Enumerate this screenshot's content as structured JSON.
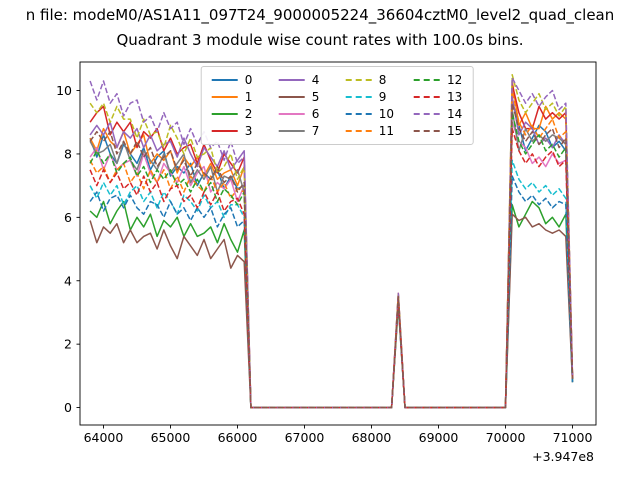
{
  "chart_data": {
    "type": "line",
    "title_line1": "n file: modeM0/AS1A11_097T24_9000005224_36604cztM0_level2_quad_clean",
    "title_line2": "Quadrant 3 module wise count rates with 100.0s bins.",
    "x_offset_label": "+3.947e8",
    "xlabel": "",
    "ylabel": "",
    "xlim": [
      63650,
      71350
    ],
    "ylim": [
      -0.55,
      10.9
    ],
    "x_ticks": [
      64000,
      65000,
      66000,
      67000,
      68000,
      69000,
      70000,
      71000
    ],
    "y_ticks": [
      0,
      2,
      4,
      6,
      8,
      10
    ],
    "grid": false,
    "legend": {
      "ncol": 4,
      "position": "upper-center"
    },
    "x": [
      63800,
      63900,
      64000,
      64100,
      64200,
      64300,
      64400,
      64500,
      64600,
      64700,
      64800,
      64900,
      65000,
      65100,
      65200,
      65300,
      65400,
      65500,
      65600,
      65700,
      65800,
      65900,
      66000,
      66100,
      66200,
      66300,
      66400,
      66500,
      66600,
      66700,
      66800,
      66900,
      67000,
      67100,
      67200,
      67300,
      67400,
      67500,
      67600,
      67700,
      67800,
      67900,
      68000,
      68100,
      68200,
      68300,
      68400,
      68500,
      68600,
      68700,
      68800,
      68900,
      69000,
      69100,
      69200,
      69300,
      69400,
      69500,
      69600,
      69700,
      69800,
      69900,
      70000,
      70100,
      70200,
      70300,
      70400,
      70500,
      70600,
      70700,
      70800,
      70900,
      71000
    ],
    "series": [
      {
        "name": "0",
        "color": "#1f77b4",
        "dash": false,
        "values": [
          8.5,
          7.9,
          8.6,
          8.0,
          7.7,
          8.3,
          8.0,
          7.7,
          8.2,
          7.5,
          7.9,
          8.1,
          7.3,
          7.6,
          7.4,
          7.7,
          7.0,
          7.4,
          7.2,
          7.5,
          6.9,
          7.3,
          6.9,
          7.0,
          0,
          0,
          0,
          0,
          0,
          0,
          0,
          0,
          0,
          0,
          0,
          0,
          0,
          0,
          0,
          0,
          0,
          0,
          0,
          0,
          0,
          0,
          3.5,
          0,
          0,
          0,
          0,
          0,
          0,
          0,
          0,
          0,
          0,
          0,
          0,
          0,
          0,
          0,
          0,
          9.7,
          8.9,
          8.1,
          8.5,
          8.9,
          8.7,
          8.2,
          8.4,
          8.1,
          0.9
        ]
      },
      {
        "name": "1",
        "color": "#ff7f0e",
        "dash": false,
        "values": [
          8.5,
          8.1,
          8.8,
          8.4,
          8.2,
          8.7,
          8.0,
          8.3,
          8.6,
          7.7,
          8.0,
          7.8,
          8.1,
          7.4,
          7.9,
          7.6,
          7.9,
          7.3,
          7.7,
          7.2,
          7.4,
          7.5,
          7.0,
          7.6,
          0,
          0,
          0,
          0,
          0,
          0,
          0,
          0,
          0,
          0,
          0,
          0,
          0,
          0,
          0,
          0,
          0,
          0,
          0,
          0,
          0,
          0,
          3.5,
          0,
          0,
          0,
          0,
          0,
          0,
          0,
          0,
          0,
          0,
          0,
          0,
          0,
          0,
          0,
          0,
          10.3,
          8.9,
          9.3,
          8.8,
          8.8,
          9.5,
          9.1,
          9.3,
          9.1,
          0.9
        ]
      },
      {
        "name": "2",
        "color": "#2ca02c",
        "dash": false,
        "values": [
          6.2,
          6.0,
          6.5,
          5.8,
          6.2,
          6.5,
          5.6,
          6.0,
          5.7,
          6.1,
          5.4,
          5.9,
          5.7,
          6.0,
          5.4,
          5.8,
          5.4,
          5.5,
          5.7,
          5.2,
          5.8,
          5.3,
          4.9,
          5.6,
          0,
          0,
          0,
          0,
          0,
          0,
          0,
          0,
          0,
          0,
          0,
          0,
          0,
          0,
          0,
          0,
          0,
          0,
          0,
          0,
          0,
          0,
          3.3,
          0,
          0,
          0,
          0,
          0,
          0,
          0,
          0,
          0,
          0,
          0,
          0,
          0,
          0,
          0,
          0,
          6.4,
          5.7,
          6.1,
          6.5,
          6.3,
          5.8,
          6.0,
          5.7,
          6.1,
          0.8
        ]
      },
      {
        "name": "3",
        "color": "#d62728",
        "dash": false,
        "values": [
          9.0,
          9.3,
          9.5,
          8.6,
          9.0,
          8.7,
          9.0,
          8.2,
          8.7,
          8.5,
          8.8,
          8.1,
          8.5,
          8.0,
          8.2,
          8.3,
          7.7,
          8.3,
          7.8,
          7.4,
          8.0,
          7.7,
          7.4,
          7.9,
          0,
          0,
          0,
          0,
          0,
          0,
          0,
          0,
          0,
          0,
          0,
          0,
          0,
          0,
          0,
          0,
          0,
          0,
          0,
          0,
          0,
          0,
          3.6,
          0,
          0,
          0,
          0,
          0,
          0,
          0,
          0,
          0,
          0,
          0,
          0,
          0,
          0,
          0,
          0,
          10.2,
          9.3,
          8.8,
          8.8,
          9.5,
          9.1,
          9.3,
          9.1,
          9.3,
          1.0
        ]
      },
      {
        "name": "4",
        "color": "#9467bd",
        "dash": false,
        "values": [
          8.6,
          8.9,
          8.6,
          9.0,
          8.2,
          8.7,
          8.5,
          8.8,
          8.2,
          8.6,
          8.1,
          8.3,
          8.4,
          7.9,
          8.5,
          8.0,
          7.6,
          8.2,
          7.9,
          7.6,
          8.1,
          7.5,
          7.8,
          8.1,
          0,
          0,
          0,
          0,
          0,
          0,
          0,
          0,
          0,
          0,
          0,
          0,
          0,
          0,
          0,
          0,
          0,
          0,
          0,
          0,
          0,
          0,
          3.5,
          0,
          0,
          0,
          0,
          0,
          0,
          0,
          0,
          0,
          0,
          0,
          0,
          0,
          0,
          0,
          0,
          9.8,
          8.6,
          9.0,
          8.8,
          8.3,
          8.5,
          8.2,
          8.6,
          8.3,
          0.9
        ]
      },
      {
        "name": "5",
        "color": "#8c564b",
        "dash": false,
        "values": [
          5.9,
          5.2,
          5.7,
          5.5,
          5.8,
          5.2,
          5.6,
          5.2,
          5.4,
          5.5,
          5.0,
          5.6,
          5.1,
          4.7,
          5.4,
          5.1,
          4.8,
          5.3,
          4.7,
          5.0,
          5.3,
          4.4,
          4.8,
          4.6,
          0,
          0,
          0,
          0,
          0,
          0,
          0,
          0,
          0,
          0,
          0,
          0,
          0,
          0,
          0,
          0,
          0,
          0,
          0,
          0,
          0,
          0,
          3.2,
          0,
          0,
          0,
          0,
          0,
          0,
          0,
          0,
          0,
          0,
          0,
          0,
          0,
          0,
          0,
          0,
          6.1,
          5.9,
          6.0,
          5.7,
          5.8,
          5.6,
          5.5,
          5.6,
          5.4,
          0.8
        ]
      },
      {
        "name": "6",
        "color": "#e377c2",
        "dash": false,
        "values": [
          7.9,
          8.2,
          7.5,
          8.0,
          7.5,
          7.7,
          7.8,
          7.3,
          8.0,
          7.4,
          7.1,
          7.7,
          7.4,
          7.1,
          7.6,
          7.0,
          7.4,
          7.6,
          6.8,
          7.1,
          6.9,
          7.2,
          6.5,
          7.0,
          0,
          0,
          0,
          0,
          0,
          0,
          0,
          0,
          0,
          0,
          0,
          0,
          0,
          0,
          0,
          0,
          0,
          0,
          0,
          0,
          0,
          0,
          3.4,
          0,
          0,
          0,
          0,
          0,
          0,
          0,
          0,
          0,
          0,
          0,
          0,
          0,
          0,
          0,
          0,
          9.0,
          8.4,
          8.2,
          7.7,
          7.9,
          7.6,
          8.0,
          7.7,
          7.8,
          0.9
        ]
      },
      {
        "name": "7",
        "color": "#7f7f7f",
        "dash": false,
        "values": [
          8.4,
          8.0,
          8.1,
          8.3,
          7.7,
          8.4,
          7.8,
          7.5,
          8.1,
          7.8,
          7.5,
          8.0,
          7.4,
          7.7,
          8.0,
          7.1,
          7.5,
          7.2,
          7.6,
          6.8,
          7.3,
          7.2,
          7.5,
          6.8,
          0,
          0,
          0,
          0,
          0,
          0,
          0,
          0,
          0,
          0,
          0,
          0,
          0,
          0,
          0,
          0,
          0,
          0,
          0,
          0,
          0,
          0,
          3.4,
          0,
          0,
          0,
          0,
          0,
          0,
          0,
          0,
          0,
          0,
          0,
          0,
          0,
          0,
          0,
          0,
          9.4,
          8.1,
          8.8,
          8.4,
          8.6,
          8.4,
          8.6,
          8.5,
          8.3,
          0.9
        ]
      },
      {
        "name": "8",
        "color": "#bcbd22",
        "dash": true,
        "values": [
          9.6,
          9.3,
          9.6,
          9.0,
          9.5,
          9.1,
          9.1,
          8.5,
          9.1,
          8.6,
          8.7,
          8.2,
          8.9,
          8.5,
          8.0,
          8.5,
          7.9,
          8.0,
          8.2,
          7.4,
          7.6,
          8.0,
          7.2,
          7.6,
          0,
          0,
          0,
          0,
          0,
          0,
          0,
          0,
          0,
          0,
          0,
          0,
          0,
          0,
          0,
          0,
          0,
          0,
          0,
          0,
          0,
          0,
          3.6,
          0,
          0,
          0,
          0,
          0,
          0,
          0,
          0,
          0,
          0,
          0,
          0,
          0,
          0,
          0,
          0,
          10.5,
          9.7,
          9.3,
          9.6,
          9.9,
          9.4,
          9.6,
          9.2,
          9.5,
          1.0
        ]
      },
      {
        "name": "9",
        "color": "#17becf",
        "dash": true,
        "values": [
          7.0,
          6.6,
          7.1,
          6.7,
          7.0,
          6.4,
          6.8,
          7.0,
          6.5,
          6.8,
          6.3,
          6.8,
          6.5,
          6.1,
          6.7,
          6.5,
          6.2,
          6.7,
          6.3,
          6.5,
          6.0,
          6.4,
          6.4,
          6.0,
          0,
          0,
          0,
          0,
          0,
          0,
          0,
          0,
          0,
          0,
          0,
          0,
          0,
          0,
          0,
          0,
          0,
          0,
          0,
          0,
          0,
          0,
          3.3,
          0,
          0,
          0,
          0,
          0,
          0,
          0,
          0,
          0,
          0,
          0,
          0,
          0,
          0,
          0,
          0,
          7.8,
          7.2,
          6.9,
          7.1,
          6.8,
          7.0,
          6.7,
          6.9,
          6.6,
          0.8
        ]
      },
      {
        "name": "10",
        "color": "#1f77b4",
        "dash": true,
        "values": [
          6.5,
          6.8,
          6.2,
          6.6,
          6.7,
          6.3,
          6.7,
          6.3,
          6.1,
          6.5,
          6.4,
          6.0,
          6.5,
          6.1,
          6.3,
          5.9,
          6.3,
          6.0,
          6.3,
          5.7,
          6.1,
          6.3,
          5.7,
          5.9,
          0,
          0,
          0,
          0,
          0,
          0,
          0,
          0,
          0,
          0,
          0,
          0,
          0,
          0,
          0,
          0,
          0,
          0,
          0,
          0,
          0,
          0,
          3.3,
          0,
          0,
          0,
          0,
          0,
          0,
          0,
          0,
          0,
          0,
          0,
          0,
          0,
          0,
          0,
          0,
          7.3,
          6.8,
          6.5,
          6.7,
          6.4,
          6.6,
          6.3,
          6.5,
          6.4,
          0.8
        ]
      },
      {
        "name": "11",
        "color": "#ff7f0e",
        "dash": true,
        "values": [
          7.8,
          7.4,
          7.6,
          7.1,
          7.5,
          7.7,
          7.1,
          7.4,
          6.9,
          7.5,
          7.1,
          7.5,
          6.9,
          7.3,
          6.8,
          7.3,
          7.0,
          6.8,
          7.3,
          6.8,
          7.1,
          6.6,
          6.9,
          6.8,
          0,
          0,
          0,
          0,
          0,
          0,
          0,
          0,
          0,
          0,
          0,
          0,
          0,
          0,
          0,
          0,
          0,
          0,
          0,
          0,
          0,
          0,
          3.4,
          0,
          0,
          0,
          0,
          0,
          0,
          0,
          0,
          0,
          0,
          0,
          0,
          0,
          0,
          0,
          0,
          10.0,
          9.0,
          8.6,
          8.9,
          8.5,
          8.8,
          9.1,
          8.5,
          8.7,
          0.9
        ]
      },
      {
        "name": "12",
        "color": "#2ca02c",
        "dash": true,
        "values": [
          7.7,
          8.1,
          7.7,
          8.0,
          7.4,
          7.7,
          7.9,
          7.3,
          7.6,
          7.1,
          7.5,
          7.2,
          7.5,
          7.0,
          7.2,
          6.8,
          7.2,
          6.8,
          7.1,
          6.5,
          6.9,
          6.7,
          6.4,
          6.8,
          0,
          0,
          0,
          0,
          0,
          0,
          0,
          0,
          0,
          0,
          0,
          0,
          0,
          0,
          0,
          0,
          0,
          0,
          0,
          0,
          0,
          0,
          3.4,
          0,
          0,
          0,
          0,
          0,
          0,
          0,
          0,
          0,
          0,
          0,
          0,
          0,
          0,
          0,
          0,
          9.3,
          8.4,
          8.0,
          8.3,
          8.6,
          8.1,
          8.3,
          7.9,
          8.2,
          0.9
        ]
      },
      {
        "name": "13",
        "color": "#d62728",
        "dash": true,
        "values": [
          7.5,
          7.0,
          7.5,
          7.1,
          7.4,
          6.9,
          7.1,
          6.7,
          7.3,
          6.8,
          7.1,
          6.5,
          6.9,
          7.0,
          6.5,
          6.7,
          6.3,
          6.8,
          6.4,
          6.8,
          6.2,
          6.5,
          6.6,
          6.1,
          0,
          0,
          0,
          0,
          0,
          0,
          0,
          0,
          0,
          0,
          0,
          0,
          0,
          0,
          0,
          0,
          0,
          0,
          0,
          0,
          0,
          0,
          3.4,
          0,
          0,
          0,
          0,
          0,
          0,
          0,
          0,
          0,
          0,
          0,
          0,
          0,
          0,
          0,
          0,
          8.8,
          8.1,
          7.7,
          8.0,
          7.6,
          7.9,
          8.1,
          7.6,
          7.8,
          0.9
        ]
      },
      {
        "name": "14",
        "color": "#9467bd",
        "dash": true,
        "values": [
          10.3,
          9.7,
          10.3,
          9.6,
          9.9,
          9.2,
          9.6,
          9.7,
          9.0,
          9.2,
          8.7,
          9.3,
          8.8,
          9.0,
          8.3,
          8.8,
          8.3,
          8.7,
          8.2,
          8.4,
          7.8,
          8.4,
          7.7,
          7.9,
          0,
          0,
          0,
          0,
          0,
          0,
          0,
          0,
          0,
          0,
          0,
          0,
          0,
          0,
          0,
          0,
          0,
          0,
          0,
          0,
          0,
          0,
          3.6,
          0,
          0,
          0,
          0,
          0,
          0,
          0,
          0,
          0,
          0,
          0,
          0,
          0,
          0,
          0,
          0,
          10.4,
          10.0,
          9.6,
          9.9,
          9.5,
          9.8,
          10.0,
          9.4,
          9.6,
          1.0
        ]
      },
      {
        "name": "15",
        "color": "#8c564b",
        "dash": true,
        "values": [
          8.4,
          8.7,
          8.4,
          8.7,
          8.0,
          8.4,
          8.0,
          8.4,
          7.9,
          8.2,
          7.6,
          7.9,
          8.1,
          7.5,
          7.8,
          7.3,
          7.7,
          7.4,
          7.2,
          7.6,
          7.1,
          7.3,
          6.8,
          7.1,
          0,
          0,
          0,
          0,
          0,
          0,
          0,
          0,
          0,
          0,
          0,
          0,
          0,
          0,
          0,
          0,
          0,
          0,
          0,
          0,
          0,
          0,
          3.5,
          0,
          0,
          0,
          0,
          0,
          0,
          0,
          0,
          0,
          0,
          0,
          0,
          0,
          0,
          0,
          0,
          9.6,
          8.8,
          8.4,
          8.7,
          8.3,
          8.6,
          8.8,
          8.2,
          8.5,
          0.9
        ]
      }
    ]
  }
}
